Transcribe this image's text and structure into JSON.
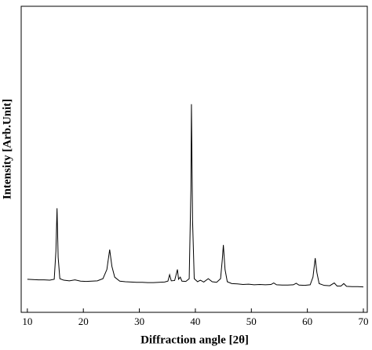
{
  "chart_data": {
    "type": "line",
    "xlabel": "Diffraction angle [2θ]",
    "ylabel": "Intensity [Arb.Unit]",
    "xlim": [
      8.9,
      70.7
    ],
    "ylim": [
      0,
      100
    ],
    "xticks": [
      10,
      20,
      30,
      40,
      50,
      60,
      70
    ],
    "color": "#000000",
    "x": [
      10,
      11,
      12,
      13,
      14,
      14.8,
      15.1,
      15.3,
      15.5,
      15.8,
      16.5,
      17.5,
      18.5,
      19.5,
      20.5,
      21.5,
      22.5,
      23.5,
      24.2,
      24.7,
      25.1,
      25.6,
      26.5,
      27.5,
      28.5,
      29.5,
      30.5,
      31.5,
      32.5,
      33.5,
      34.5,
      35.1,
      35.4,
      35.7,
      36.3,
      36.8,
      37.0,
      37.3,
      37.6,
      38.3,
      38.9,
      39.2,
      39.3,
      39.5,
      39.8,
      40.4,
      40.9,
      41.5,
      42.3,
      43,
      43.8,
      44.5,
      44.8,
      45.0,
      45.3,
      45.7,
      46.5,
      47.5,
      48.5,
      49.5,
      50.5,
      51.5,
      52.5,
      53.5,
      54,
      54.5,
      55.5,
      56.5,
      57.5,
      58,
      58.5,
      59.5,
      60.5,
      61,
      61.4,
      61.7,
      62.1,
      63,
      64,
      64.8,
      65.3,
      66,
      66.5,
      67,
      68,
      69,
      70
    ],
    "values": [
      10.8,
      10.7,
      10.6,
      10.6,
      10.5,
      10.8,
      20,
      34,
      18,
      11,
      10.5,
      10.3,
      10.6,
      10.2,
      10.1,
      10.2,
      10.3,
      11,
      14,
      20.5,
      15,
      11.5,
      10.2,
      10,
      9.9,
      9.8,
      9.8,
      9.7,
      9.7,
      9.8,
      9.9,
      10.2,
      12.3,
      10.3,
      10.4,
      14,
      10.8,
      11.5,
      10.2,
      10.1,
      11,
      40,
      68,
      30,
      11,
      10,
      10.5,
      9.9,
      11,
      10,
      9.8,
      11,
      17,
      22,
      14,
      10,
      9.4,
      9.3,
      9.1,
      9.2,
      9.0,
      9.1,
      9.0,
      9.1,
      9.6,
      9.0,
      8.9,
      8.9,
      9.0,
      9.5,
      8.9,
      8.8,
      9.0,
      11.5,
      17.7,
      13,
      9.4,
      8.8,
      8.7,
      9.6,
      8.6,
      8.6,
      9.4,
      8.5,
      8.4,
      8.4,
      8.3
    ]
  }
}
